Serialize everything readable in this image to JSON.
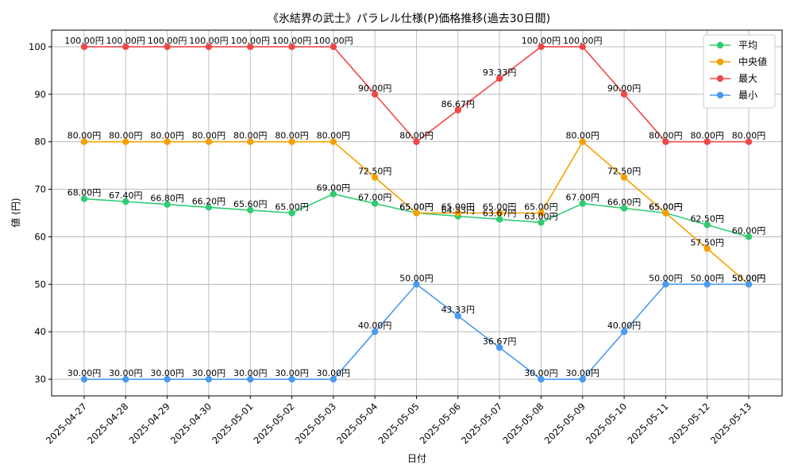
{
  "chart_data": {
    "type": "line",
    "title": "《氷結界の武士》パラレル仕様(P)価格推移(過去30日間)",
    "xlabel": "日付",
    "ylabel": "値 (円)",
    "ylim": [
      26.5,
      103.5
    ],
    "yticks": [
      30,
      40,
      50,
      60,
      70,
      80,
      90,
      100
    ],
    "grid": true,
    "legend_position": "top-right",
    "value_suffix": "円",
    "categories": [
      "2025-04-27",
      "2025-04-28",
      "2025-04-29",
      "2025-04-30",
      "2025-05-01",
      "2025-05-02",
      "2025-05-03",
      "2025-05-04",
      "2025-05-05",
      "2025-05-06",
      "2025-05-07",
      "2025-05-08",
      "2025-05-09",
      "2025-05-10",
      "2025-05-11",
      "2025-05-12",
      "2025-05-13"
    ],
    "series": [
      {
        "name": "平均",
        "color": "#2ecc71",
        "values": [
          68.0,
          67.4,
          66.8,
          66.2,
          65.6,
          65.0,
          69.0,
          67.0,
          65.0,
          64.33,
          63.67,
          63.0,
          67.0,
          66.0,
          65.0,
          62.5,
          60.0
        ]
      },
      {
        "name": "中央値",
        "color": "#f5a000",
        "values": [
          80.0,
          80.0,
          80.0,
          80.0,
          80.0,
          80.0,
          80.0,
          72.5,
          65.0,
          65.0,
          65.0,
          65.0,
          80.0,
          72.5,
          65.0,
          57.5,
          50.0
        ]
      },
      {
        "name": "最大",
        "color": "#f04848",
        "values": [
          100.0,
          100.0,
          100.0,
          100.0,
          100.0,
          100.0,
          100.0,
          90.0,
          80.0,
          86.67,
          93.33,
          100.0,
          100.0,
          90.0,
          80.0,
          80.0,
          80.0
        ]
      },
      {
        "name": "最小",
        "color": "#4a9af0",
        "values": [
          30.0,
          30.0,
          30.0,
          30.0,
          30.0,
          30.0,
          30.0,
          40.0,
          50.0,
          43.33,
          36.67,
          30.0,
          30.0,
          40.0,
          50.0,
          50.0,
          50.0
        ]
      }
    ]
  }
}
